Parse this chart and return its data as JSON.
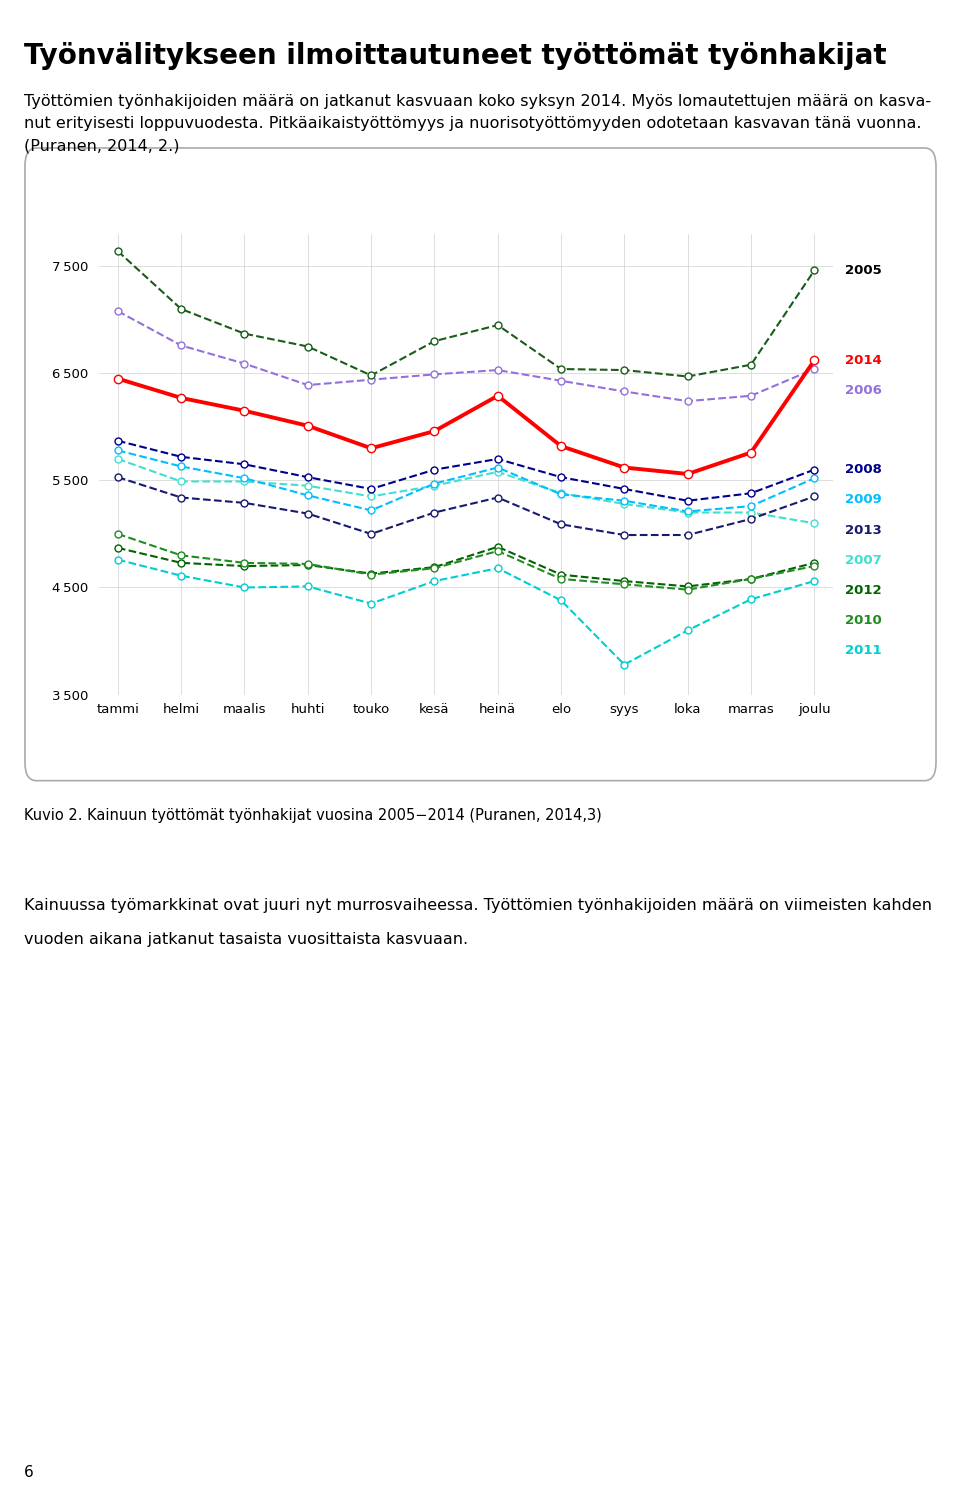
{
  "title": "Työnvälitykseen ilmoittautuneet työttömät työnhakijat",
  "paragraph": "Työttömien työnhakijoiden määrä on jatkanut kasvuaan koko syksyn 2014. Myös lomautettujen määrä on kasva-\nnut erityisesti loppuvuodesta. Pitkäaikaistyöttömyys ja nuorisotyöttömyyden odotetaan kasvavan tänä vuonna.\n(Puranen, 2014, 2.)",
  "caption": "Kuvio 2. Kainuun työttömät työnhakijat vuosina 2005−2014 (Puranen, 2014,3)",
  "body_line1": "Kainuussa työmarkkinat ovat juuri nyt murrosvaiheessa. Työttömien työnhakijoiden määrä on viimeisten kahden",
  "body_line2": "vuoden aikana jatkanut tasaista vuosittaista kasvuaan.",
  "page_number": "6",
  "months": [
    "tammi",
    "helmi",
    "maalis",
    "huhti",
    "touko",
    "kesä",
    "heinä",
    "elo",
    "syys",
    "loka",
    "marras",
    "joulu"
  ],
  "ylim": [
    3500,
    7800
  ],
  "yticks": [
    3500,
    4500,
    5500,
    6500,
    7500
  ],
  "series": {
    "2005": {
      "color": "#1a5c1a",
      "linestyle": "--",
      "linewidth": 1.5,
      "label_color": "#000000",
      "label_weight": "bold",
      "data": [
        7640,
        7100,
        6870,
        6750,
        6480,
        6800,
        6950,
        6540,
        6530,
        6470,
        6580,
        7460
      ]
    },
    "2006": {
      "color": "#9370DB",
      "linestyle": "--",
      "linewidth": 1.5,
      "label_color": "#9370DB",
      "label_weight": "bold",
      "data": [
        7080,
        6760,
        6590,
        6390,
        6440,
        6490,
        6530,
        6430,
        6330,
        6240,
        6290,
        6540
      ]
    },
    "2007": {
      "color": "#40E0D0",
      "linestyle": "--",
      "linewidth": 1.5,
      "label_color": "#40E0D0",
      "label_weight": "bold",
      "data": [
        5700,
        5490,
        5490,
        5450,
        5350,
        5450,
        5580,
        5380,
        5280,
        5200,
        5200,
        5100
      ]
    },
    "2008": {
      "color": "#00008B",
      "linestyle": "--",
      "linewidth": 1.5,
      "label_color": "#00008B",
      "label_weight": "bold",
      "data": [
        5870,
        5720,
        5650,
        5530,
        5420,
        5600,
        5700,
        5530,
        5420,
        5310,
        5380,
        5600
      ]
    },
    "2009": {
      "color": "#00BFFF",
      "linestyle": "--",
      "linewidth": 1.5,
      "label_color": "#00BFFF",
      "label_weight": "bold",
      "data": [
        5780,
        5630,
        5520,
        5360,
        5220,
        5470,
        5620,
        5370,
        5310,
        5210,
        5260,
        5520
      ]
    },
    "2010": {
      "color": "#228B22",
      "linestyle": "--",
      "linewidth": 1.5,
      "label_color": "#228B22",
      "label_weight": "bold",
      "data": [
        5000,
        4800,
        4730,
        4720,
        4620,
        4680,
        4840,
        4580,
        4530,
        4480,
        4580,
        4700
      ]
    },
    "2011": {
      "color": "#00CED1",
      "linestyle": "--",
      "linewidth": 1.5,
      "label_color": "#00CED1",
      "label_weight": "bold",
      "data": [
        4760,
        4610,
        4500,
        4510,
        4350,
        4560,
        4680,
        4380,
        3780,
        4100,
        4390,
        4560
      ]
    },
    "2012": {
      "color": "#006400",
      "linestyle": "--",
      "linewidth": 1.5,
      "label_color": "#006400",
      "label_weight": "bold",
      "data": [
        4870,
        4730,
        4700,
        4710,
        4630,
        4690,
        4880,
        4620,
        4560,
        4510,
        4580,
        4730
      ]
    },
    "2013": {
      "color": "#191970",
      "linestyle": "--",
      "linewidth": 1.5,
      "label_color": "#191970",
      "label_weight": "bold",
      "data": [
        5530,
        5340,
        5290,
        5190,
        5000,
        5200,
        5340,
        5090,
        4990,
        4990,
        5140,
        5350
      ]
    },
    "2014": {
      "color": "#FF0000",
      "linestyle": "-",
      "linewidth": 2.8,
      "label_color": "#FF0000",
      "label_weight": "bold",
      "data": [
        6450,
        6270,
        6150,
        6010,
        5800,
        5960,
        6290,
        5820,
        5620,
        5560,
        5760,
        6620
      ]
    }
  },
  "legend_order": [
    "2005",
    "2014",
    "2006",
    "2013",
    "2008",
    "2009",
    "2007",
    "2010",
    "2012",
    "2011"
  ],
  "legend_y_manual": {
    "2005": 7460,
    "2014": 6620,
    "2006": 6540,
    "2013": 5350,
    "2008": 5600,
    "2009": 5520,
    "2007": 5100,
    "2010": 4700,
    "2012": 4730,
    "2011": 4560
  }
}
